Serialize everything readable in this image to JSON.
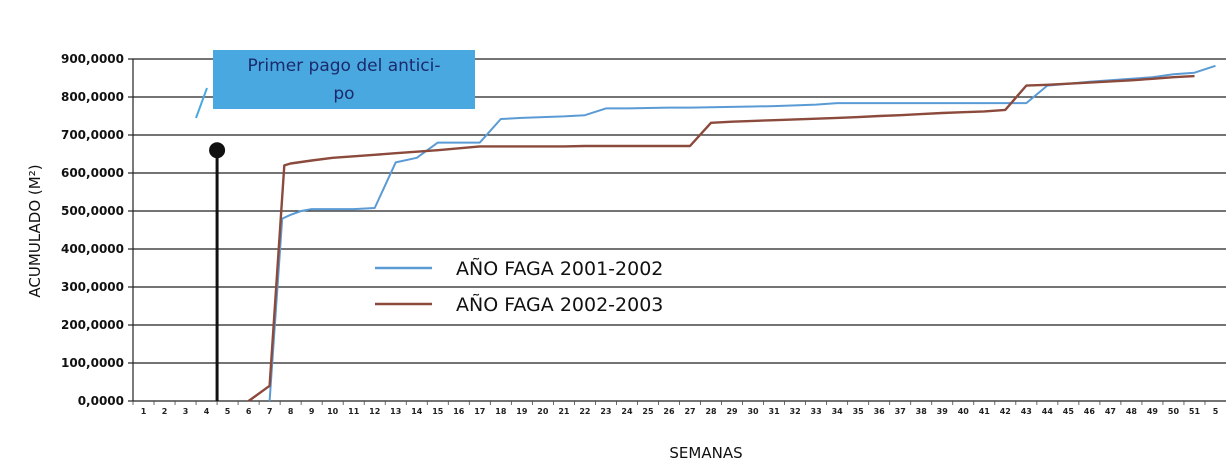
{
  "chart_data": {
    "type": "line",
    "xlabel": "SEMANAS",
    "ylabel": "ACUMULADO (M²)",
    "ylim": [
      0,
      900000
    ],
    "y_ticks": [
      0,
      100000,
      200000,
      300000,
      400000,
      500000,
      600000,
      700000,
      800000,
      900000
    ],
    "y_tick_labels": [
      "0,0000",
      "100,0000",
      "200,0000",
      "300,0000",
      "400,0000",
      "500,0000",
      "600,0000",
      "700,0000",
      "800,0000",
      "900,0000"
    ],
    "x_ticks": [
      "1",
      "2",
      "3",
      "4",
      "5",
      "6",
      "7",
      "8",
      "9",
      "10",
      "11",
      "12",
      "13",
      "14",
      "15",
      "16",
      "17",
      "18",
      "19",
      "20",
      "21",
      "22",
      "23",
      "24",
      "25",
      "26",
      "27",
      "28",
      "29",
      "30",
      "31",
      "32",
      "33",
      "34",
      "35",
      "36",
      "37",
      "38",
      "39",
      "40",
      "41",
      "42",
      "43",
      "44",
      "45",
      "46",
      "47",
      "48",
      "49",
      "50",
      "51",
      "5"
    ],
    "grid": "horizontal",
    "legend_position": "center",
    "series": [
      {
        "name": "AÑO FAGA 2001-2002",
        "color": "#5b9bd5",
        "x": [
          7,
          7.6,
          8,
          8.5,
          9,
          10,
          11,
          12,
          13,
          14,
          15,
          16,
          17,
          18,
          19,
          20,
          21,
          22,
          23,
          24,
          25,
          26,
          27,
          28,
          29,
          30,
          31,
          32,
          33,
          34,
          35,
          36,
          37,
          38,
          39,
          40,
          41,
          42,
          43,
          44,
          45,
          46,
          47,
          48,
          49,
          50,
          51,
          52
        ],
        "y": [
          0,
          480000,
          490000,
          500000,
          505000,
          505000,
          505000,
          508000,
          628000,
          640000,
          680000,
          680000,
          680000,
          742000,
          745000,
          747000,
          749000,
          752000,
          770000,
          770000,
          771000,
          772000,
          772000,
          773000,
          774000,
          775000,
          776000,
          778000,
          780000,
          784000,
          784000,
          784000,
          784000,
          784000,
          784000,
          784000,
          784000,
          784000,
          784000,
          830000,
          835000,
          840000,
          844000,
          848000,
          852000,
          860000,
          864000,
          882000
        ]
      },
      {
        "name": "AÑO FAGA 2002-2003",
        "color": "#8b4a3c",
        "x": [
          6,
          7,
          7.7,
          8,
          9,
          10,
          11,
          12,
          13,
          14,
          15,
          16,
          17,
          18,
          19,
          20,
          21,
          22,
          23,
          24,
          25,
          26,
          27,
          28,
          29,
          30,
          31,
          32,
          33,
          34,
          35,
          36,
          37,
          38,
          39,
          40,
          41,
          42,
          43,
          44,
          45,
          46,
          47,
          48,
          49,
          50,
          51
        ],
        "y": [
          0,
          40000,
          620000,
          625000,
          633000,
          640000,
          644000,
          648000,
          652000,
          656000,
          660000,
          665000,
          670000,
          670000,
          670000,
          670000,
          670000,
          671000,
          671000,
          671000,
          671000,
          671000,
          671000,
          732000,
          735000,
          737000,
          739000,
          741000,
          743000,
          745000,
          747000,
          750000,
          752000,
          755000,
          758000,
          760000,
          762000,
          766000,
          830000,
          832000,
          835000,
          838000,
          841000,
          844000,
          848000,
          852000,
          855000
        ]
      }
    ],
    "marker": {
      "x": 4.5,
      "y": 660000
    },
    "annotation": {
      "lines": [
        "Primer pago del antici-",
        "po"
      ],
      "color": "#4aa8e0"
    }
  }
}
